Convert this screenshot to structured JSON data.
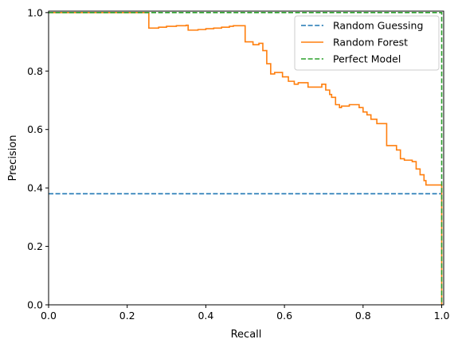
{
  "chart_data": {
    "type": "line",
    "title": "",
    "xlabel": "Recall",
    "ylabel": "Precision",
    "xlim": [
      0.0,
      1.005
    ],
    "ylim": [
      0.0,
      1.005
    ],
    "xticks": [
      "0.0",
      "0.2",
      "0.4",
      "0.6",
      "0.8",
      "1.0"
    ],
    "yticks": [
      "0.0",
      "0.2",
      "0.4",
      "0.6",
      "0.8",
      "1.0"
    ],
    "grid": false,
    "legend_position": "top-right",
    "series": [
      {
        "name": "Random Guessing",
        "color": "#1f77b4",
        "style": "dashed",
        "x": [
          0.0,
          1.0
        ],
        "y": [
          0.38,
          0.38
        ]
      },
      {
        "name": "Random Forest",
        "color": "#ff7f0e",
        "style": "solid-step",
        "x": [
          0.0,
          0.255,
          0.255,
          0.28,
          0.3,
          0.325,
          0.35,
          0.355,
          0.38,
          0.4,
          0.42,
          0.44,
          0.46,
          0.47,
          0.485,
          0.5,
          0.52,
          0.535,
          0.545,
          0.555,
          0.565,
          0.575,
          0.595,
          0.6,
          0.61,
          0.625,
          0.635,
          0.645,
          0.66,
          0.675,
          0.695,
          0.705,
          0.715,
          0.72,
          0.73,
          0.74,
          0.745,
          0.765,
          0.79,
          0.8,
          0.81,
          0.82,
          0.835,
          0.855,
          0.86,
          0.88,
          0.885,
          0.895,
          0.905,
          0.925,
          0.935,
          0.945,
          0.955,
          0.96,
          0.995,
          1.0
        ],
        "y": [
          1.0,
          1.0,
          0.947,
          0.95,
          0.953,
          0.955,
          0.957,
          0.94,
          0.942,
          0.945,
          0.947,
          0.95,
          0.953,
          0.955,
          0.955,
          0.9,
          0.89,
          0.895,
          0.87,
          0.825,
          0.79,
          0.795,
          0.78,
          0.78,
          0.765,
          0.755,
          0.76,
          0.76,
          0.745,
          0.745,
          0.755,
          0.735,
          0.72,
          0.71,
          0.685,
          0.675,
          0.68,
          0.685,
          0.675,
          0.66,
          0.65,
          0.635,
          0.62,
          0.62,
          0.545,
          0.545,
          0.53,
          0.5,
          0.495,
          0.49,
          0.465,
          0.445,
          0.425,
          0.41,
          0.41,
          0.0
        ]
      },
      {
        "name": "Perfect Model",
        "color": "#2ca02c",
        "style": "dashed",
        "x": [
          0.0,
          1.0,
          1.0
        ],
        "y": [
          1.0,
          1.0,
          0.0
        ]
      }
    ]
  }
}
